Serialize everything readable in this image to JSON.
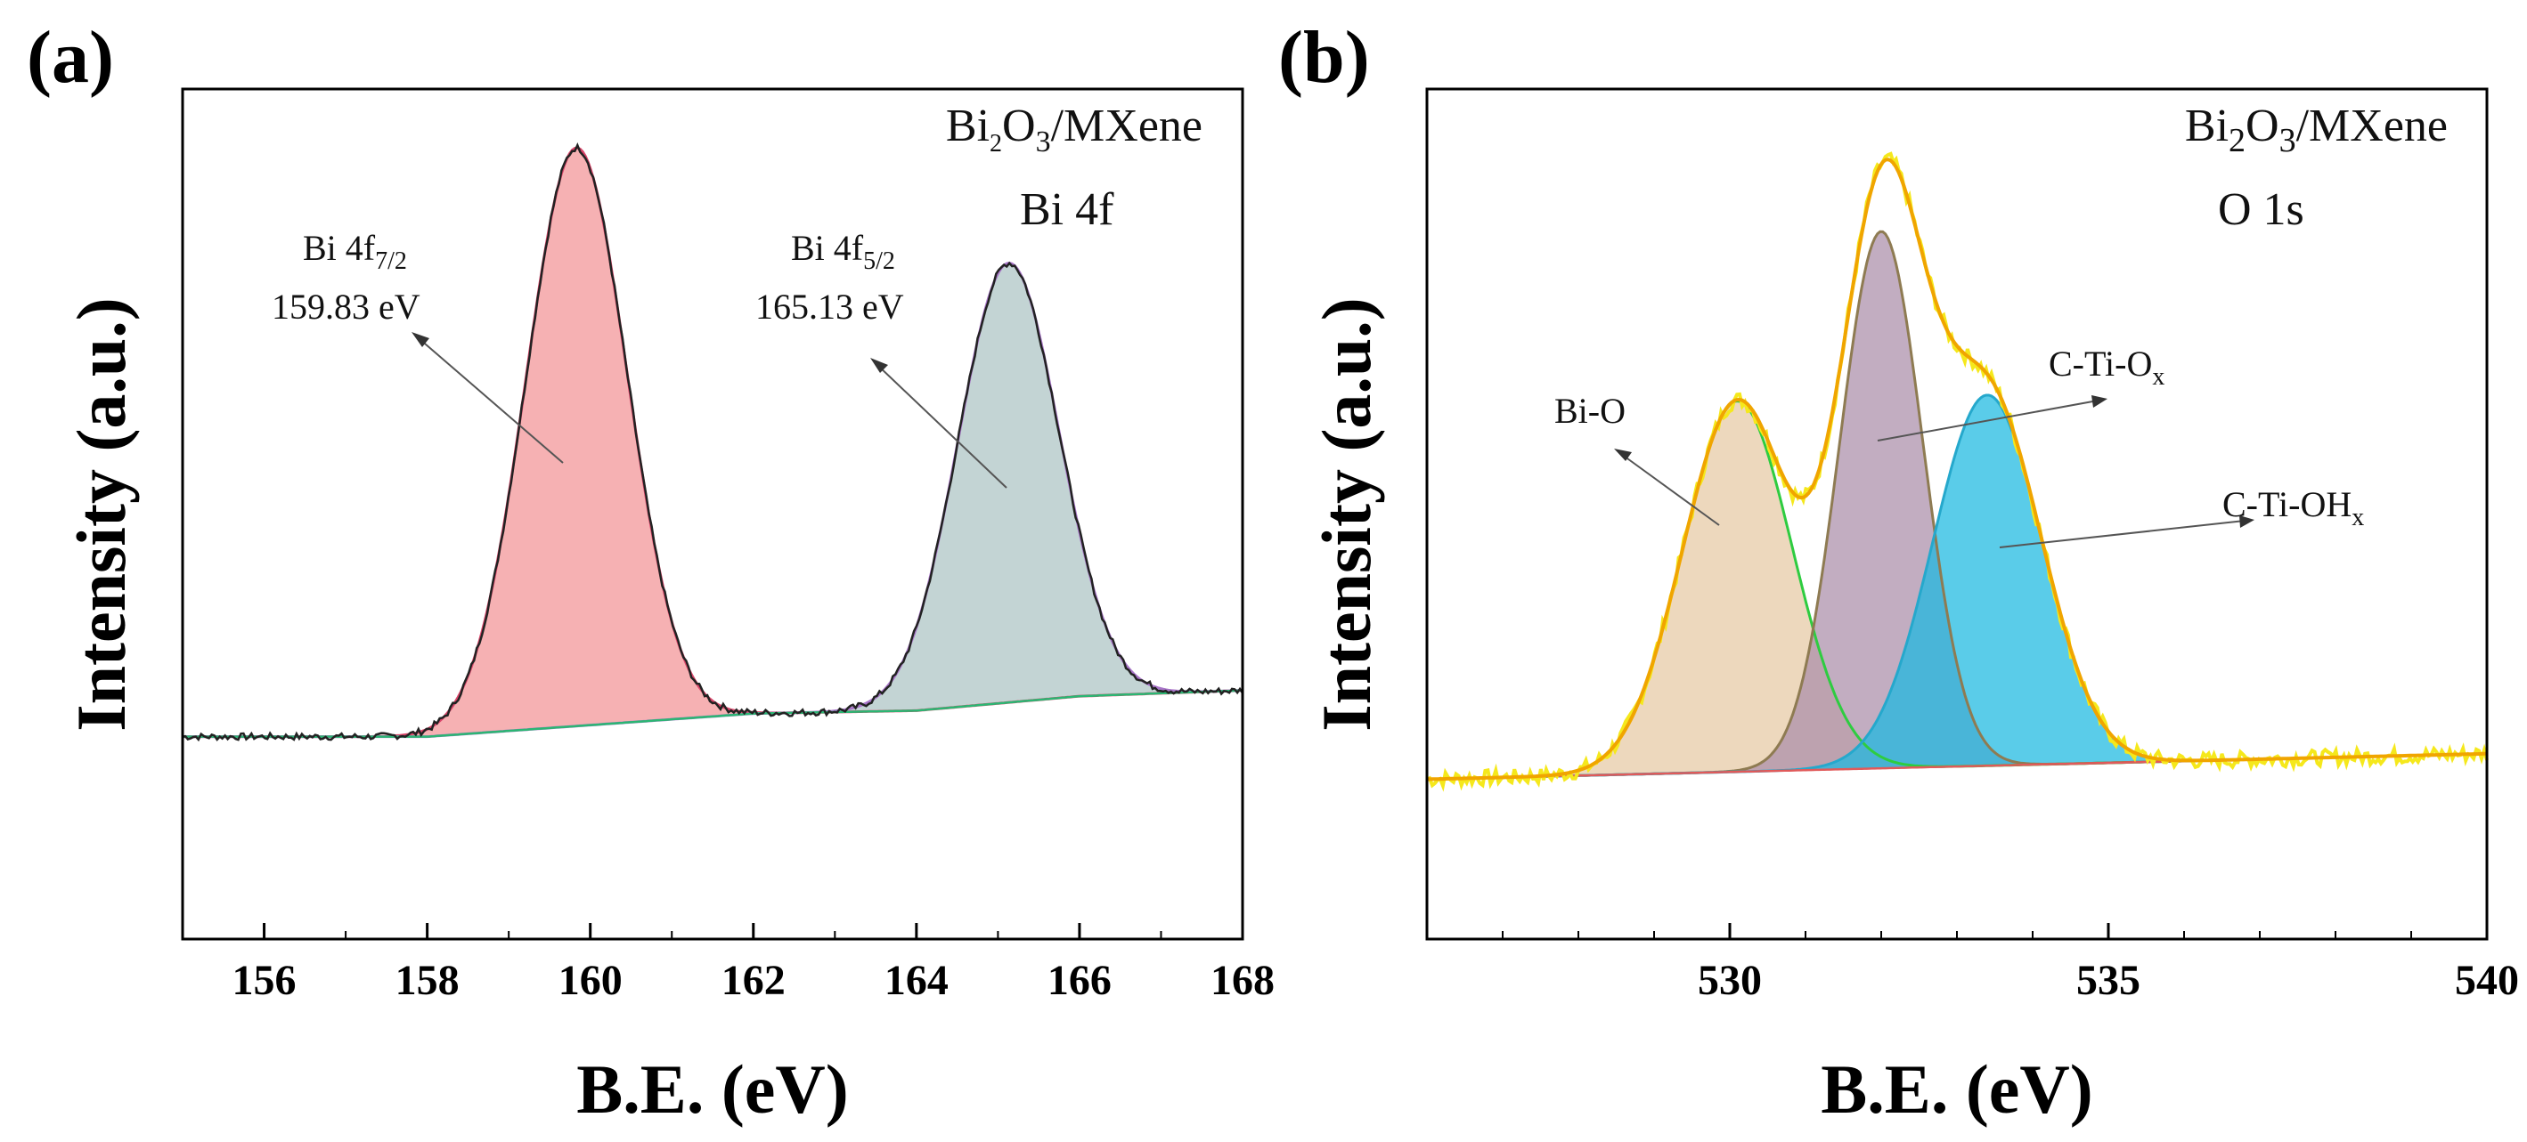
{
  "panels": {
    "a": {
      "label": "(a)",
      "sample": "Bi",
      "sample_sub1": "2",
      "sample_mid": "O",
      "sample_sub2": "3",
      "sample_tail": "/MXene",
      "region": "Bi 4f",
      "ylabel": "Intensity (a.u.)",
      "xlabel": "B.E. (eV)",
      "peak1_name": "Bi 4f",
      "peak1_sub": "7/2",
      "peak1_value": "159.83 eV",
      "peak2_name": "Bi 4f",
      "peak2_sub": "5/2",
      "peak2_value": "165.13 eV"
    },
    "b": {
      "label": "(b)",
      "sample": "Bi",
      "sample_sub1": "2",
      "sample_mid": "O",
      "sample_sub2": "3",
      "sample_tail": "/MXene",
      "region": "O 1s",
      "ylabel": "Intensity (a.u.)",
      "xlabel": "B.E. (eV)",
      "comp1": "Bi-O",
      "comp2_main": "C-Ti-O",
      "comp2_sub": "x",
      "comp3_main": "C-Ti-OH",
      "comp3_sub": "x"
    }
  },
  "chart_data": [
    {
      "type": "area",
      "title": "Bi2O3/MXene Bi 4f",
      "xlabel": "B.E. (eV)",
      "ylabel": "Intensity (a.u.)",
      "xlim": [
        155,
        168
      ],
      "ylim": [
        -0.35,
        1.12
      ],
      "xticks": [
        156,
        158,
        160,
        162,
        164,
        166,
        168
      ],
      "baseline": {
        "x": [
          155,
          158,
          160,
          162,
          164,
          166,
          168
        ],
        "y": [
          0.0,
          0.0,
          0.02,
          0.04,
          0.045,
          0.07,
          0.08
        ]
      },
      "peaks": [
        {
          "name": "Bi 4f7/2",
          "center": 159.83,
          "height": 1.0,
          "width": 0.62,
          "color": "#f4a3a6",
          "line": "#d94469"
        },
        {
          "name": "Bi 4f5/2",
          "center": 165.13,
          "height": 0.76,
          "width": 0.62,
          "color": "#b9cccc",
          "line": "#a875c8"
        }
      ]
    },
    {
      "type": "area",
      "title": "Bi2O3/MXene O 1s",
      "xlabel": "B.E. (eV)",
      "ylabel": "Intensity (a.u.)",
      "xlim": [
        526,
        540
      ],
      "ylim": [
        -0.25,
        1.08
      ],
      "xticks": [
        530,
        535,
        540
      ],
      "baseline": {
        "x": [
          526,
          540
        ],
        "y": [
          0.0,
          0.04
        ]
      },
      "components": [
        {
          "name": "Bi-O",
          "center": 530.1,
          "height": 0.58,
          "width": 0.72,
          "color": "#e6c9a4",
          "line": "#2ecc40"
        },
        {
          "name": "C-Ti-Ox",
          "center": 532.0,
          "height": 0.84,
          "width": 0.55,
          "color": "#ab8ea9",
          "line": "#8e7b52"
        },
        {
          "name": "C-Ti-OHx",
          "center": 533.4,
          "height": 0.58,
          "width": 0.72,
          "color": "#1ab8e0",
          "line": "#25a8cc"
        }
      ],
      "envelope_color": "#f0a500",
      "raw_color": "#f5e81c"
    }
  ]
}
